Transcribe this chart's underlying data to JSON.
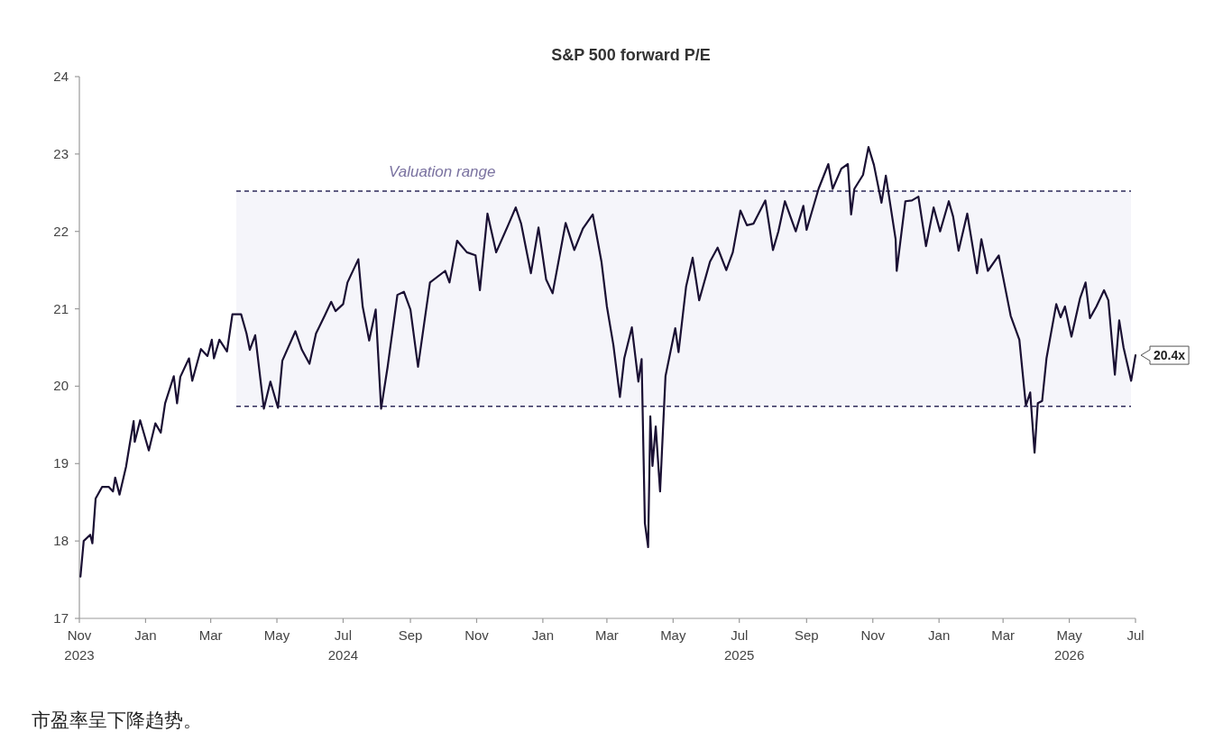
{
  "chart_data": {
    "type": "line",
    "title": "S&P 500 forward P/E",
    "x": [
      "2023-11-02",
      "2023-11-05",
      "2023-11-11",
      "2023-11-13",
      "2023-11-16",
      "2023-11-22",
      "2023-11-28",
      "2023-12-02",
      "2023-12-04",
      "2023-12-08",
      "2023-12-14",
      "2023-12-18",
      "2023-12-21",
      "2023-12-22",
      "2023-12-27",
      "2024-01-04",
      "2024-01-10",
      "2024-01-15",
      "2024-01-19",
      "2024-01-27",
      "2024-01-30",
      "2024-02-02",
      "2024-02-10",
      "2024-02-13",
      "2024-02-21",
      "2024-02-27",
      "2024-03-02",
      "2024-03-04",
      "2024-03-09",
      "2024-03-16",
      "2024-03-21",
      "2024-03-29",
      "2024-04-03",
      "2024-04-06",
      "2024-04-11",
      "2024-04-19",
      "2024-04-25",
      "2024-05-02",
      "2024-05-06",
      "2024-05-18",
      "2024-05-24",
      "2024-05-31",
      "2024-06-06",
      "2024-06-14",
      "2024-06-20",
      "2024-06-24",
      "2024-07-01",
      "2024-07-05",
      "2024-07-15",
      "2024-07-19",
      "2024-07-25",
      "2024-07-31",
      "2024-08-05",
      "2024-08-11",
      "2024-08-20",
      "2024-08-26",
      "2024-09-01",
      "2024-09-08",
      "2024-09-19",
      "2024-10-03",
      "2024-10-07",
      "2024-10-14",
      "2024-10-23",
      "2024-10-31",
      "2024-11-04",
      "2024-11-11",
      "2024-11-19",
      "2024-11-30",
      "2024-12-07",
      "2024-12-12",
      "2024-12-21",
      "2024-12-28",
      "2025-01-04",
      "2025-01-10",
      "2025-01-22",
      "2025-01-30",
      "2025-02-07",
      "2025-02-16",
      "2025-02-24",
      "2025-03-01",
      "2025-03-07",
      "2025-03-13",
      "2025-03-17",
      "2025-03-24",
      "2025-03-30",
      "2025-04-02",
      "2025-04-05",
      "2025-04-08",
      "2025-04-10",
      "2025-04-12",
      "2025-04-15",
      "2025-04-19",
      "2025-04-24",
      "2025-05-03",
      "2025-05-06",
      "2025-05-13",
      "2025-05-19",
      "2025-05-25",
      "2025-06-04",
      "2025-06-11",
      "2025-06-19",
      "2025-06-25",
      "2025-07-02",
      "2025-07-08",
      "2025-07-14",
      "2025-07-25",
      "2025-08-01",
      "2025-08-06",
      "2025-08-12",
      "2025-08-22",
      "2025-08-29",
      "2025-09-01",
      "2025-09-12",
      "2025-09-21",
      "2025-09-25",
      "2025-10-03",
      "2025-10-09",
      "2025-10-12",
      "2025-10-15",
      "2025-10-23",
      "2025-10-28",
      "2025-11-02",
      "2025-11-09",
      "2025-11-13",
      "2025-11-22",
      "2025-11-23",
      "2025-12-01",
      "2025-12-07",
      "2025-12-13",
      "2025-12-20",
      "2025-12-27",
      "2026-01-02",
      "2026-01-10",
      "2026-01-14",
      "2026-01-19",
      "2026-01-27",
      "2026-02-05",
      "2026-02-09",
      "2026-02-15",
      "2026-02-25",
      "2026-03-01",
      "2026-03-08",
      "2026-03-16",
      "2026-03-22",
      "2026-03-26",
      "2026-03-30",
      "2026-04-02",
      "2026-04-06",
      "2026-04-10",
      "2026-04-19",
      "2026-04-23",
      "2026-04-27",
      "2026-05-03",
      "2026-05-11",
      "2026-05-16",
      "2026-05-20",
      "2026-05-26",
      "2026-06-02",
      "2026-06-06",
      "2026-06-12",
      "2026-06-16",
      "2026-06-20",
      "2026-06-27",
      "2026-07-01"
    ],
    "series": [
      {
        "color": "#1a1033",
        "values": [
          17.54,
          18.0,
          18.08,
          17.97,
          18.55,
          18.7,
          18.7,
          18.64,
          18.82,
          18.6,
          18.96,
          19.3,
          19.55,
          19.28,
          19.56,
          19.17,
          19.52,
          19.4,
          19.78,
          20.13,
          19.78,
          20.12,
          20.36,
          20.07,
          20.48,
          20.39,
          20.6,
          20.36,
          20.6,
          20.45,
          20.93,
          20.93,
          20.68,
          20.47,
          20.66,
          19.71,
          20.06,
          19.72,
          20.33,
          20.71,
          20.47,
          20.29,
          20.68,
          20.91,
          21.09,
          20.97,
          21.06,
          21.34,
          21.64,
          21.03,
          20.59,
          20.99,
          19.71,
          20.25,
          21.18,
          21.22,
          20.99,
          20.25,
          21.34,
          21.49,
          21.34,
          21.88,
          21.73,
          21.69,
          21.24,
          22.23,
          21.73,
          22.08,
          22.31,
          22.1,
          21.46,
          22.05,
          21.38,
          21.2,
          22.11,
          21.76,
          22.04,
          22.22,
          21.61,
          21.03,
          20.53,
          19.86,
          20.36,
          20.76,
          20.06,
          20.35,
          18.23,
          17.92,
          19.61,
          18.97,
          19.48,
          18.64,
          20.13,
          20.75,
          20.44,
          21.29,
          21.66,
          21.11,
          21.61,
          21.79,
          21.5,
          21.73,
          22.27,
          22.08,
          22.1,
          22.4,
          21.76,
          22.0,
          22.39,
          22.0,
          22.33,
          22.02,
          22.55,
          22.87,
          22.55,
          22.81,
          22.87,
          22.22,
          22.55,
          22.73,
          23.09,
          22.86,
          22.37,
          22.72,
          21.9,
          21.49,
          22.39,
          22.4,
          22.45,
          21.81,
          22.31,
          22.0,
          22.39,
          22.19,
          21.75,
          22.23,
          21.46,
          21.9,
          21.49,
          21.69,
          21.41,
          20.91,
          20.6,
          19.75,
          19.92,
          19.14,
          19.78,
          19.81,
          20.36,
          21.06,
          20.89,
          21.03,
          20.64,
          21.14,
          21.34,
          20.88,
          21.03,
          21.24,
          21.11,
          20.15,
          20.85,
          20.5,
          20.07,
          20.4
        ]
      }
    ],
    "xlim": [
      "2023-11-01",
      "2026-07-01"
    ],
    "ylim": [
      17,
      24
    ],
    "xticks": [
      {
        "value": "2023-11-01",
        "label": "Nov 2023"
      },
      {
        "value": "2024-01-01",
        "label": "Jan"
      },
      {
        "value": "2024-03-01",
        "label": "Mar"
      },
      {
        "value": "2024-05-01",
        "label": "May"
      },
      {
        "value": "2024-07-01",
        "label": "Jul 2024"
      },
      {
        "value": "2024-09-01",
        "label": "Sep"
      },
      {
        "value": "2024-11-01",
        "label": "Nov"
      },
      {
        "value": "2025-01-01",
        "label": "Jan"
      },
      {
        "value": "2025-03-01",
        "label": "Mar"
      },
      {
        "value": "2025-05-01",
        "label": "May"
      },
      {
        "value": "2025-07-01",
        "label": "Jul 2025"
      },
      {
        "value": "2025-09-01",
        "label": "Sep"
      },
      {
        "value": "2025-11-01",
        "label": "Nov"
      },
      {
        "value": "2026-01-01",
        "label": "Jan"
      },
      {
        "value": "2026-03-01",
        "label": "Mar"
      },
      {
        "value": "2026-05-01",
        "label": "May 2026"
      },
      {
        "value": "2026-07-01",
        "label": "Jul"
      }
    ],
    "yticks": [
      17,
      18,
      19,
      20,
      21,
      22,
      23,
      24
    ],
    "bands": [
      {
        "axis": "y",
        "from": 19.74,
        "to": 22.52,
        "label": "Valuation range",
        "color": "#f5f5fa"
      }
    ],
    "ref_lines": [
      {
        "axis": "y",
        "value": 22.52,
        "line_style": "dashed",
        "color": "#2e2a5a"
      },
      {
        "axis": "y",
        "value": 19.74,
        "line_style": "dashed",
        "color": "#2e2a5a"
      }
    ],
    "annotations": [
      {
        "text": "20.4x",
        "x": "2026-07-01",
        "y": 20.4
      },
      "市盈率呈下降趋势。"
    ]
  }
}
